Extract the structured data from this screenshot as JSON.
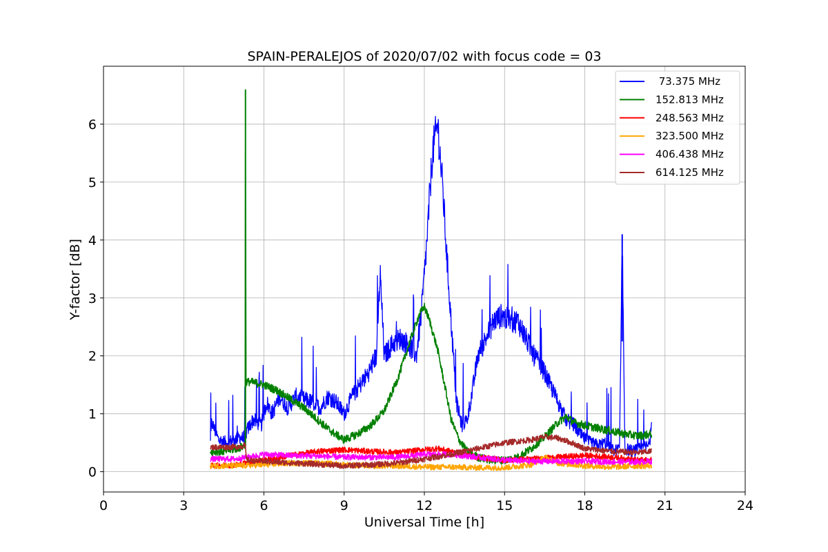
{
  "chart_data": {
    "type": "line",
    "title": "SPAIN-PERALEJOS of 2020/07/02 with focus code = 03",
    "xlabel": "Universal Time [h]",
    "ylabel": "Y-factor [dB]",
    "xlim": [
      0,
      24
    ],
    "ylim": [
      -0.35,
      7.0
    ],
    "xticks": [
      0,
      3,
      6,
      9,
      12,
      15,
      18,
      21,
      24
    ],
    "yticks": [
      0,
      1,
      2,
      3,
      4,
      5,
      6
    ],
    "grid": true,
    "legend_position": "top-right",
    "series": [
      {
        "name": " 73.375 MHz",
        "color": "#0000ff",
        "x": [
          4.0,
          4.05,
          4.3,
          4.6,
          4.9,
          5.1,
          5.3,
          5.35,
          5.6,
          5.9,
          6.1,
          6.3,
          6.6,
          6.9,
          7.2,
          7.5,
          7.8,
          8.1,
          8.4,
          8.7,
          9.0,
          9.3,
          9.6,
          9.9,
          10.2,
          10.35,
          10.5,
          10.8,
          11.1,
          11.4,
          11.7,
          11.9,
          12.1,
          12.3,
          12.5,
          12.7,
          12.8,
          13.0,
          13.2,
          13.4,
          13.6,
          13.8,
          14.0,
          14.3,
          14.6,
          14.9,
          15.2,
          15.5,
          15.8,
          16.1,
          16.4,
          16.7,
          17.0,
          17.3,
          17.6,
          17.9,
          18.2,
          18.5,
          18.8,
          19.1,
          19.3,
          19.4,
          19.5,
          19.8,
          20.1,
          20.4,
          20.5
        ],
        "y": [
          0.5,
          0.85,
          0.55,
          0.5,
          0.55,
          0.6,
          0.55,
          0.7,
          0.9,
          0.8,
          1.2,
          1.0,
          1.3,
          1.1,
          1.3,
          1.25,
          1.2,
          1.1,
          1.3,
          1.2,
          1.0,
          1.3,
          1.5,
          1.7,
          2.0,
          3.4,
          2.0,
          2.2,
          2.3,
          2.2,
          2.0,
          2.8,
          4.0,
          5.5,
          6.0,
          4.8,
          4.0,
          2.6,
          1.2,
          0.8,
          0.9,
          1.4,
          2.0,
          2.3,
          2.6,
          2.7,
          2.6,
          2.6,
          2.3,
          2.0,
          1.8,
          1.5,
          1.2,
          0.9,
          0.8,
          0.6,
          0.5,
          0.45,
          0.5,
          0.35,
          0.4,
          4.1,
          0.4,
          0.35,
          0.4,
          0.45,
          0.75
        ]
      },
      {
        "name": "152.813 MHz",
        "color": "#008000",
        "x": [
          4.0,
          4.5,
          5.0,
          5.3,
          5.31,
          5.33,
          5.5,
          6.0,
          6.5,
          7.0,
          7.5,
          8.0,
          8.5,
          9.0,
          9.5,
          10.0,
          10.5,
          11.0,
          11.5,
          11.8,
          12.0,
          12.2,
          12.5,
          12.8,
          13.0,
          13.3,
          13.6,
          14.0,
          14.5,
          15.0,
          15.5,
          16.0,
          16.5,
          17.0,
          17.3,
          17.6,
          18.0,
          18.5,
          19.0,
          19.5,
          20.0,
          20.5
        ],
        "y": [
          0.35,
          0.35,
          0.4,
          0.45,
          6.6,
          1.55,
          1.55,
          1.5,
          1.4,
          1.25,
          1.1,
          0.9,
          0.7,
          0.55,
          0.65,
          0.8,
          1.05,
          1.6,
          2.3,
          2.7,
          2.85,
          2.6,
          2.1,
          1.4,
          0.9,
          0.55,
          0.35,
          0.25,
          0.2,
          0.2,
          0.25,
          0.4,
          0.6,
          0.85,
          0.95,
          0.85,
          0.8,
          0.75,
          0.7,
          0.65,
          0.62,
          0.65
        ]
      },
      {
        "name": "248.563 MHz",
        "color": "#ff0000",
        "x": [
          4.0,
          5.0,
          6.0,
          7.0,
          8.0,
          9.0,
          10.0,
          11.0,
          12.0,
          12.5,
          13.0,
          14.0,
          15.0,
          16.0,
          17.0,
          18.0,
          19.0,
          20.0,
          20.5
        ],
        "y": [
          0.1,
          0.12,
          0.2,
          0.28,
          0.35,
          0.38,
          0.35,
          0.33,
          0.38,
          0.4,
          0.35,
          0.25,
          0.2,
          0.22,
          0.25,
          0.28,
          0.25,
          0.2,
          0.2
        ]
      },
      {
        "name": "323.500 MHz",
        "color": "#ffa500",
        "x": [
          4.0,
          5.0,
          6.0,
          7.0,
          8.0,
          9.0,
          10.0,
          11.0,
          12.0,
          13.0,
          14.0,
          15.0,
          16.0,
          16.5,
          17.0,
          18.0,
          19.0,
          20.0,
          20.5
        ],
        "y": [
          0.1,
          0.1,
          0.12,
          0.15,
          0.15,
          0.12,
          0.1,
          0.1,
          0.08,
          0.08,
          0.07,
          0.07,
          0.12,
          0.25,
          0.15,
          0.1,
          0.08,
          0.1,
          0.1
        ]
      },
      {
        "name": "406.438 MHz",
        "color": "#ff00ff",
        "x": [
          4.0,
          5.0,
          6.0,
          7.0,
          8.0,
          9.0,
          10.0,
          11.0,
          12.0,
          13.0,
          14.0,
          15.0,
          16.0,
          17.0,
          18.0,
          19.0,
          20.0,
          20.5
        ],
        "y": [
          0.22,
          0.22,
          0.3,
          0.28,
          0.27,
          0.25,
          0.25,
          0.25,
          0.3,
          0.3,
          0.25,
          0.2,
          0.18,
          0.18,
          0.18,
          0.17,
          0.17,
          0.18
        ]
      },
      {
        "name": "614.125 MHz",
        "color": "#a52a2a",
        "x": [
          4.0,
          5.0,
          5.3,
          5.35,
          6.0,
          7.0,
          8.0,
          9.0,
          10.0,
          11.0,
          12.0,
          13.0,
          14.0,
          15.0,
          16.0,
          16.5,
          17.0,
          17.5,
          18.0,
          19.0,
          20.0,
          20.5
        ],
        "y": [
          0.42,
          0.43,
          0.45,
          0.2,
          0.18,
          0.15,
          0.13,
          0.1,
          0.12,
          0.15,
          0.22,
          0.3,
          0.4,
          0.5,
          0.55,
          0.6,
          0.58,
          0.5,
          0.4,
          0.35,
          0.33,
          0.35
        ]
      }
    ]
  }
}
